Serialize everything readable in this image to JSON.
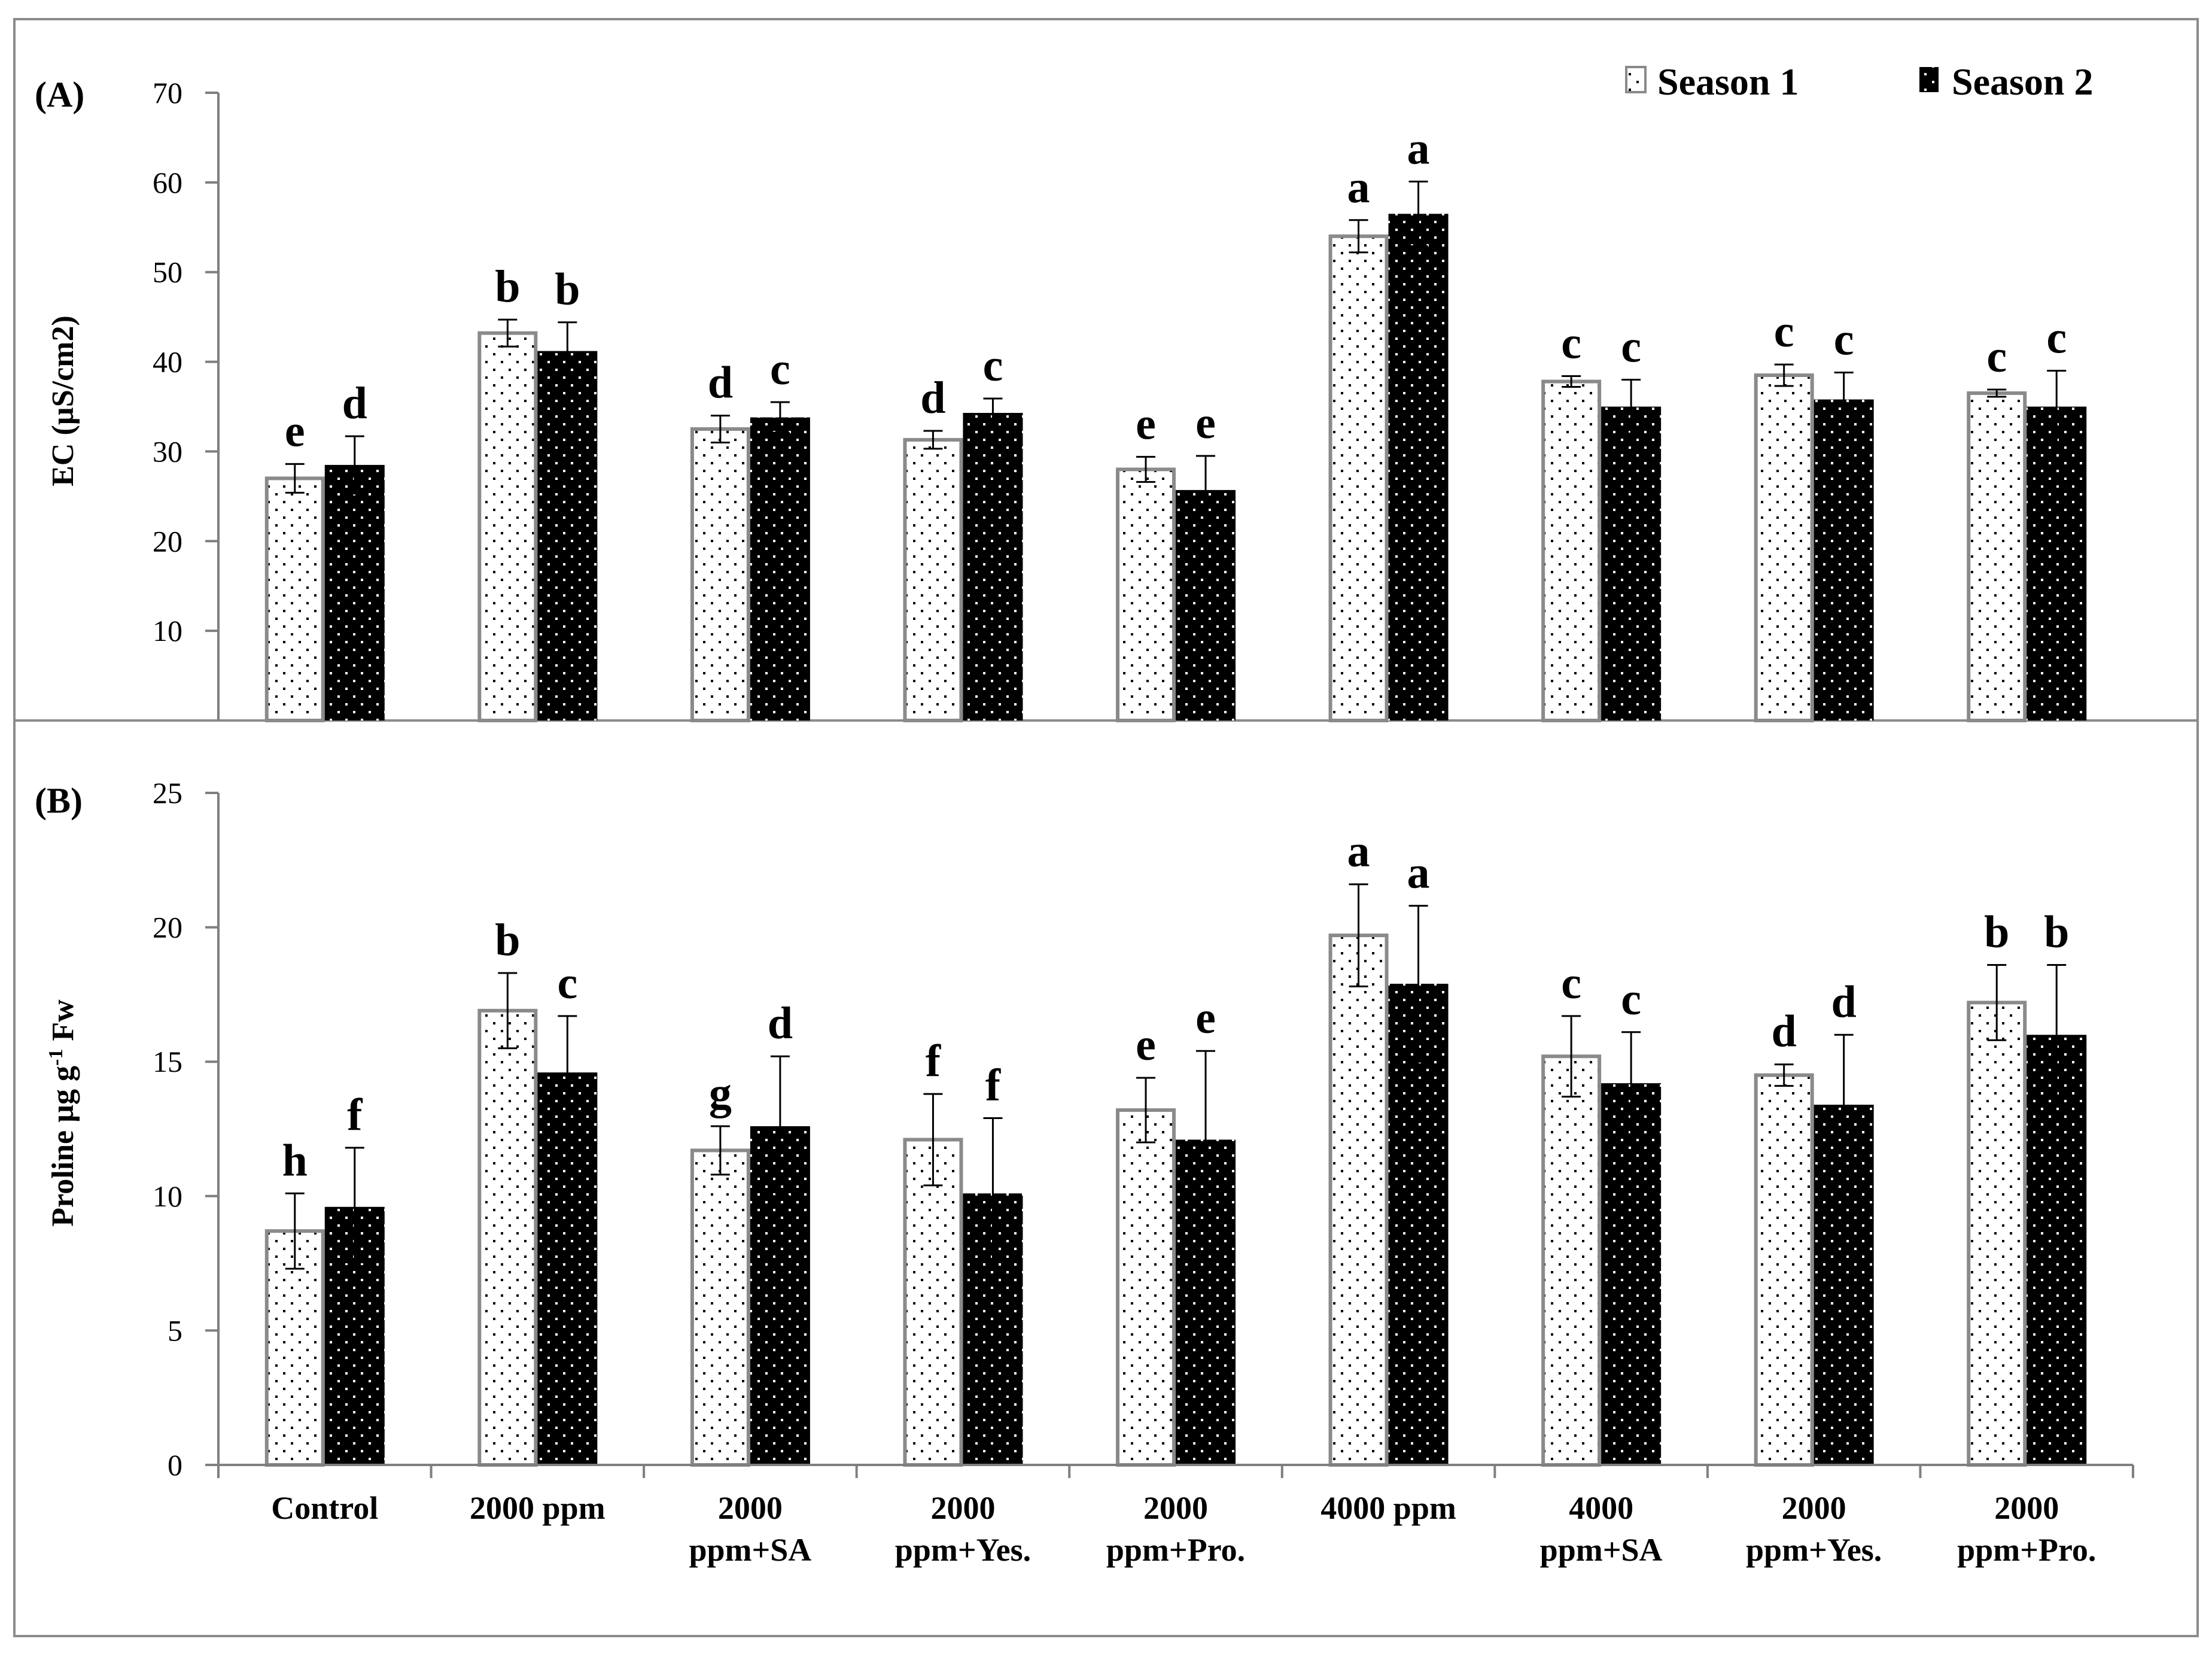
{
  "chart_data": [
    {
      "type": "bar",
      "panel_label": "(A)",
      "ylabel": "EC (µS/cm2)",
      "ylim": [
        0,
        70
      ],
      "yticks": [
        10,
        20,
        30,
        40,
        50,
        60,
        70
      ],
      "categories": [
        [
          "Control"
        ],
        [
          "2000 ppm"
        ],
        [
          "2000",
          "ppm+SA"
        ],
        [
          "2000",
          "ppm+Yes."
        ],
        [
          "2000",
          "ppm+Pro."
        ],
        [
          "4000 ppm"
        ],
        [
          "4000",
          "ppm+SA"
        ],
        [
          "2000",
          "ppm+Yes."
        ],
        [
          "2000",
          "ppm+Pro."
        ]
      ],
      "series": [
        {
          "name": "Season 1",
          "pattern": "white-dotted",
          "values": [
            27.0,
            43.2,
            32.5,
            31.3,
            28.0,
            54.0,
            37.8,
            38.5,
            36.5
          ],
          "errors": [
            1.6,
            1.5,
            1.5,
            1.0,
            1.4,
            1.8,
            0.6,
            1.2,
            0.4
          ],
          "letters": [
            "e",
            "b",
            "d",
            "d",
            "e",
            "a",
            "c",
            "c",
            "c"
          ]
        },
        {
          "name": "Season 2",
          "pattern": "black-dotted",
          "values": [
            28.5,
            41.2,
            33.8,
            34.3,
            25.7,
            56.5,
            35.0,
            35.8,
            35.0
          ],
          "errors": [
            3.2,
            3.2,
            1.7,
            1.6,
            3.8,
            3.6,
            3.0,
            3.0,
            4.0
          ],
          "letters": [
            "d",
            "b",
            "c",
            "c",
            "e",
            "a",
            "c",
            "c",
            "c"
          ]
        }
      ]
    },
    {
      "type": "bar",
      "panel_label": "(B)",
      "ylabel": "Proline µg g",
      "ylabel_sup": "-1",
      "ylabel_suffix": " Fw",
      "ylim": [
        0,
        25
      ],
      "yticks": [
        0,
        5,
        10,
        15,
        20,
        25
      ],
      "categories": [
        [
          "Control"
        ],
        [
          "2000 ppm"
        ],
        [
          "2000",
          "ppm+SA"
        ],
        [
          "2000",
          "ppm+Yes."
        ],
        [
          "2000",
          "ppm+Pro."
        ],
        [
          "4000 ppm"
        ],
        [
          "4000",
          "ppm+SA"
        ],
        [
          "2000",
          "ppm+Yes."
        ],
        [
          "2000",
          "ppm+Pro."
        ]
      ],
      "series": [
        {
          "name": "Season 1",
          "pattern": "white-dotted",
          "values": [
            8.7,
            16.9,
            11.7,
            12.1,
            13.2,
            19.7,
            15.2,
            14.5,
            17.2
          ],
          "errors": [
            1.4,
            1.4,
            0.9,
            1.7,
            1.2,
            1.9,
            1.5,
            0.4,
            1.4
          ],
          "letters": [
            "h",
            "b",
            "g",
            "f",
            "e",
            "a",
            "c",
            "d",
            "b"
          ]
        },
        {
          "name": "Season 2",
          "pattern": "black-dotted",
          "values": [
            9.6,
            14.6,
            12.6,
            10.1,
            12.1,
            17.9,
            14.2,
            13.4,
            16.0
          ],
          "errors": [
            2.2,
            2.1,
            2.6,
            2.8,
            3.3,
            2.9,
            1.9,
            2.6,
            2.6
          ],
          "letters": [
            "f",
            "c",
            "d",
            "f",
            "e",
            "a",
            "c",
            "d",
            "b"
          ]
        }
      ]
    }
  ],
  "legend": {
    "items": [
      "Season 1",
      "Season 2"
    ]
  },
  "colors": {
    "season1_fill": "#ffffff",
    "season1_border": "#8a8a8a",
    "season2_fill": "#000000",
    "axis": "#7f7f7f",
    "frame": "#8c8c8c"
  }
}
